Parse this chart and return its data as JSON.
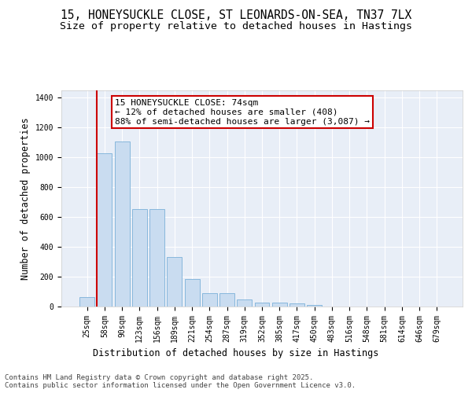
{
  "title": "15, HONEYSUCKLE CLOSE, ST LEONARDS-ON-SEA, TN37 7LX",
  "subtitle": "Size of property relative to detached houses in Hastings",
  "xlabel": "Distribution of detached houses by size in Hastings",
  "ylabel": "Number of detached properties",
  "categories": [
    "25sqm",
    "58sqm",
    "90sqm",
    "123sqm",
    "156sqm",
    "189sqm",
    "221sqm",
    "254sqm",
    "287sqm",
    "319sqm",
    "352sqm",
    "385sqm",
    "417sqm",
    "450sqm",
    "483sqm",
    "516sqm",
    "548sqm",
    "581sqm",
    "614sqm",
    "646sqm",
    "679sqm"
  ],
  "values": [
    62,
    1030,
    1105,
    655,
    655,
    330,
    185,
    88,
    88,
    45,
    28,
    25,
    20,
    12,
    0,
    0,
    0,
    0,
    0,
    0,
    0
  ],
  "bar_color": "#c9dcf0",
  "bar_edge_color": "#7ab0d8",
  "vline_color": "#cc0000",
  "annotation_text": "15 HONEYSUCKLE CLOSE: 74sqm\n← 12% of detached houses are smaller (408)\n88% of semi-detached houses are larger (3,087) →",
  "annotation_box_color": "#ffffff",
  "annotation_box_edge": "#cc0000",
  "ylim": [
    0,
    1450
  ],
  "yticks": [
    0,
    200,
    400,
    600,
    800,
    1000,
    1200,
    1400
  ],
  "background_color": "#e8eef7",
  "grid_color": "#ffffff",
  "footer": "Contains HM Land Registry data © Crown copyright and database right 2025.\nContains public sector information licensed under the Open Government Licence v3.0.",
  "title_fontsize": 10.5,
  "subtitle_fontsize": 9.5,
  "xlabel_fontsize": 8.5,
  "ylabel_fontsize": 8.5,
  "annotation_fontsize": 8,
  "tick_fontsize": 7,
  "footer_fontsize": 6.5
}
